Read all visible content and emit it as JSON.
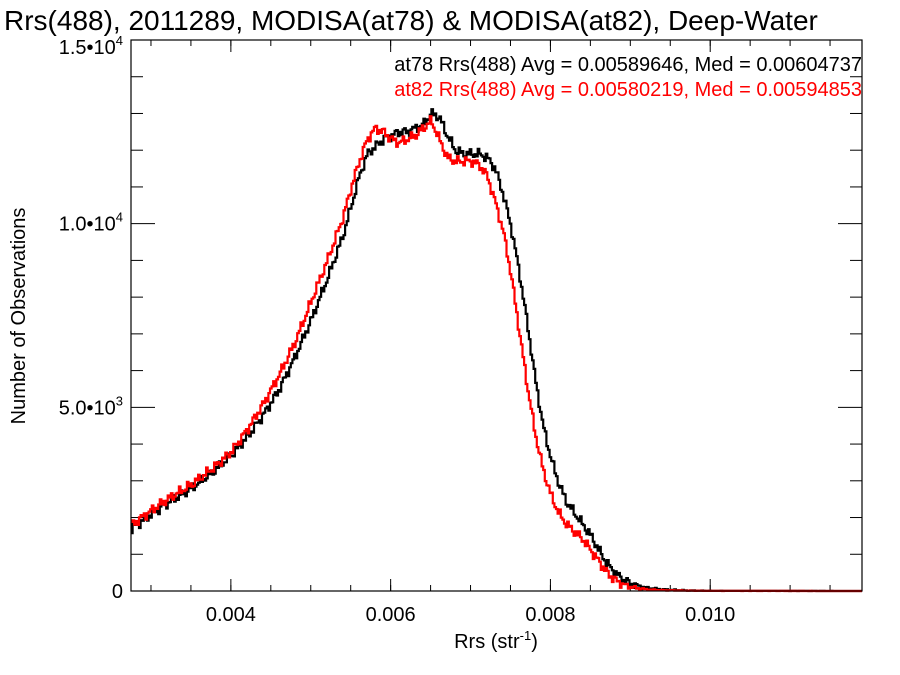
{
  "chart_data": {
    "type": "line",
    "title": "Rrs(488), 2011289, MODISA(at78) & MODISA(at82), Deep-Water",
    "xlabel": "Rrs (str",
    "xlabel_sup": "-1",
    "xlabel_close": ")",
    "ylabel": "Number of Observations",
    "xlim": [
      0.00275,
      0.0119
    ],
    "ylim": [
      0,
      15000
    ],
    "x_ticks": [
      {
        "value": 0.004,
        "label": "0.004"
      },
      {
        "value": 0.006,
        "label": "0.006"
      },
      {
        "value": 0.008,
        "label": "0.008"
      },
      {
        "value": 0.01,
        "label": "0.010"
      }
    ],
    "y_ticks": [
      {
        "value": 0,
        "base": "0",
        "exp": ""
      },
      {
        "value": 5000,
        "base": "5.0•10",
        "exp": "3"
      },
      {
        "value": 10000,
        "base": "1.0•10",
        "exp": "4"
      },
      {
        "value": 15000,
        "base": "1.5•10",
        "exp": "4"
      }
    ],
    "x_minor_step": 0.0005,
    "y_minor_step": 1000,
    "annotations": [
      {
        "text": "at78 Rrs(488) Avg = 0.00589646, Med = 0.00604737",
        "color": "#000000"
      },
      {
        "text": "at82 Rrs(488) Avg = 0.00580219, Med = 0.00594853",
        "color": "#ff0000"
      }
    ],
    "series": [
      {
        "color": "#000000",
        "points": [
          [
            0.00275,
            1700
          ],
          [
            0.003,
            2100
          ],
          [
            0.0032,
            2400
          ],
          [
            0.0035,
            2800
          ],
          [
            0.0038,
            3300
          ],
          [
            0.004,
            3700
          ],
          [
            0.0042,
            4200
          ],
          [
            0.0044,
            4800
          ],
          [
            0.0046,
            5500
          ],
          [
            0.0048,
            6400
          ],
          [
            0.005,
            7400
          ],
          [
            0.0052,
            8500
          ],
          [
            0.0054,
            9700
          ],
          [
            0.0055,
            10500
          ],
          [
            0.0056,
            11300
          ],
          [
            0.0057,
            11900
          ],
          [
            0.0058,
            12100
          ],
          [
            0.0059,
            12300
          ],
          [
            0.006,
            12400
          ],
          [
            0.0061,
            12500
          ],
          [
            0.0062,
            12500
          ],
          [
            0.0063,
            12600
          ],
          [
            0.0064,
            12700
          ],
          [
            0.0065,
            13000
          ],
          [
            0.0066,
            12900
          ],
          [
            0.0067,
            12400
          ],
          [
            0.0068,
            12000
          ],
          [
            0.0069,
            11900
          ],
          [
            0.007,
            11900
          ],
          [
            0.0071,
            11900
          ],
          [
            0.0072,
            11800
          ],
          [
            0.0073,
            11500
          ],
          [
            0.0074,
            10800
          ],
          [
            0.0075,
            9900
          ],
          [
            0.0076,
            8700
          ],
          [
            0.0077,
            7300
          ],
          [
            0.0078,
            5800
          ],
          [
            0.0079,
            4500
          ],
          [
            0.008,
            3600
          ],
          [
            0.0081,
            2900
          ],
          [
            0.0082,
            2400
          ],
          [
            0.0083,
            2100
          ],
          [
            0.0084,
            1800
          ],
          [
            0.0085,
            1500
          ],
          [
            0.0086,
            1100
          ],
          [
            0.0087,
            750
          ],
          [
            0.0088,
            500
          ],
          [
            0.0089,
            300
          ],
          [
            0.009,
            200
          ],
          [
            0.0091,
            130
          ],
          [
            0.0092,
            80
          ],
          [
            0.0094,
            40
          ],
          [
            0.0097,
            15
          ],
          [
            0.01,
            5
          ],
          [
            0.0119,
            0
          ]
        ]
      },
      {
        "color": "#ff0000",
        "points": [
          [
            0.00275,
            1800
          ],
          [
            0.003,
            2200
          ],
          [
            0.0032,
            2500
          ],
          [
            0.0035,
            2900
          ],
          [
            0.0038,
            3400
          ],
          [
            0.004,
            3800
          ],
          [
            0.0042,
            4400
          ],
          [
            0.0044,
            5100
          ],
          [
            0.0046,
            5900
          ],
          [
            0.0048,
            6800
          ],
          [
            0.005,
            7900
          ],
          [
            0.0052,
            9000
          ],
          [
            0.0054,
            10200
          ],
          [
            0.0055,
            11000
          ],
          [
            0.0056,
            11700
          ],
          [
            0.0057,
            12300
          ],
          [
            0.0058,
            12600
          ],
          [
            0.0059,
            12500
          ],
          [
            0.006,
            12300
          ],
          [
            0.0061,
            12200
          ],
          [
            0.0062,
            12300
          ],
          [
            0.0063,
            12400
          ],
          [
            0.0064,
            12600
          ],
          [
            0.0065,
            12800
          ],
          [
            0.0066,
            12300
          ],
          [
            0.0067,
            11800
          ],
          [
            0.0068,
            11700
          ],
          [
            0.0069,
            11700
          ],
          [
            0.007,
            11700
          ],
          [
            0.0071,
            11600
          ],
          [
            0.0072,
            11300
          ],
          [
            0.0073,
            10600
          ],
          [
            0.0074,
            9800
          ],
          [
            0.0075,
            8600
          ],
          [
            0.0076,
            7100
          ],
          [
            0.0077,
            5600
          ],
          [
            0.0078,
            4300
          ],
          [
            0.0079,
            3300
          ],
          [
            0.008,
            2600
          ],
          [
            0.0081,
            2100
          ],
          [
            0.0082,
            1800
          ],
          [
            0.0083,
            1600
          ],
          [
            0.0084,
            1400
          ],
          [
            0.0085,
            1100
          ],
          [
            0.0086,
            800
          ],
          [
            0.0087,
            500
          ],
          [
            0.0088,
            300
          ],
          [
            0.0089,
            180
          ],
          [
            0.009,
            110
          ],
          [
            0.0091,
            70
          ],
          [
            0.0092,
            40
          ],
          [
            0.0094,
            20
          ],
          [
            0.0097,
            8
          ],
          [
            0.01,
            3
          ],
          [
            0.0119,
            0
          ]
        ]
      }
    ]
  }
}
